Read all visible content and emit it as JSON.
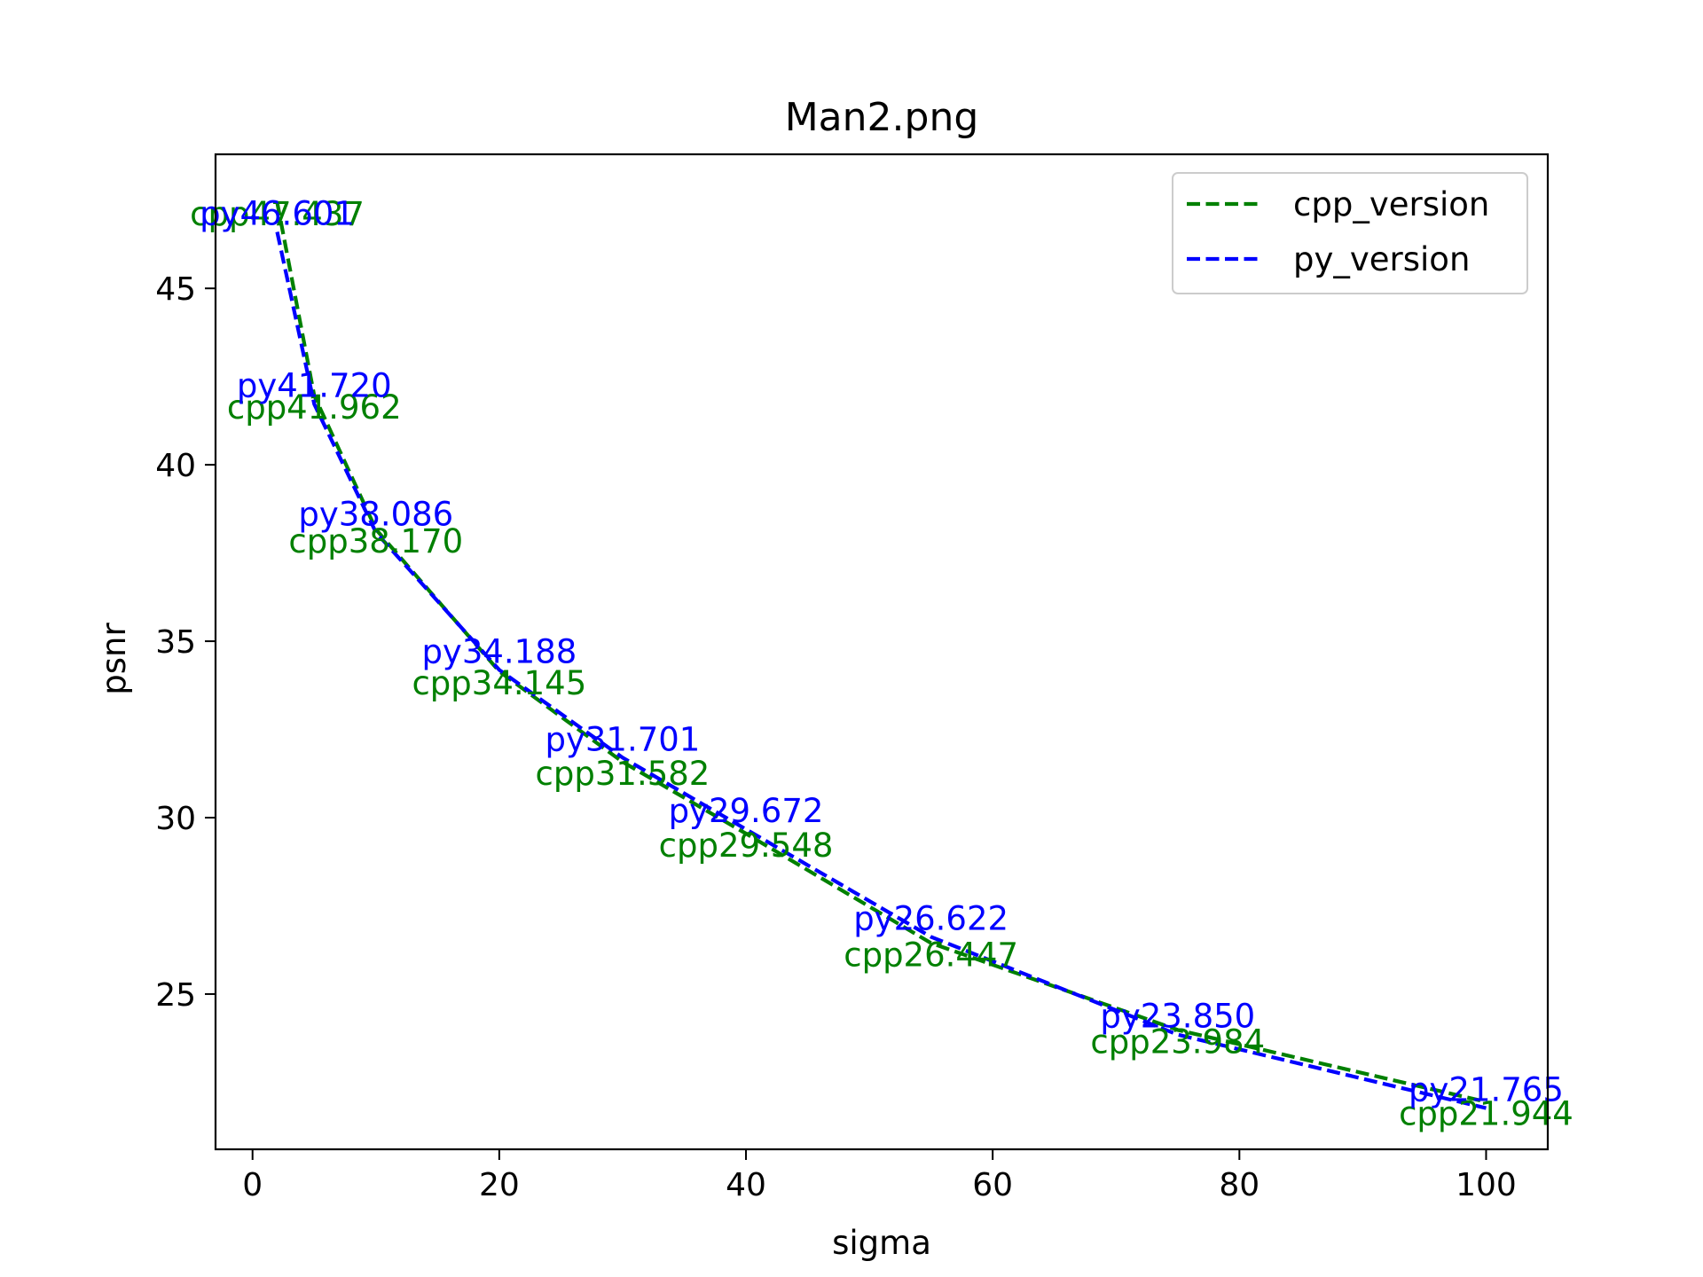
{
  "chart_data": {
    "type": "line",
    "title": "Man2.png",
    "xlabel": "sigma",
    "ylabel": "psnr",
    "xlim": [
      -3,
      105
    ],
    "ylim": [
      20.6,
      48.8
    ],
    "xticks": [
      0,
      20,
      40,
      60,
      80,
      100
    ],
    "yticks": [
      25,
      30,
      35,
      40,
      45
    ],
    "grid": false,
    "legend": {
      "position": "top-right"
    },
    "x": [
      2,
      5,
      10,
      20,
      30,
      40,
      55,
      75,
      100
    ],
    "series": [
      {
        "name": "cpp_version",
        "color": "#008000",
        "style": "dashed",
        "values": [
          47.437,
          41.962,
          38.17,
          34.145,
          31.582,
          29.548,
          26.447,
          23.984,
          21.944
        ],
        "labels": [
          "cpp47.437",
          "cpp41.962",
          "cpp38.170",
          "cpp34.145",
          "cpp31.582",
          "cpp29.548",
          "cpp26.447",
          "cpp23.984",
          "cpp21.944"
        ]
      },
      {
        "name": "py_version",
        "color": "#0000ff",
        "style": "dashed",
        "values": [
          46.601,
          41.72,
          38.086,
          34.188,
          31.701,
          29.672,
          26.622,
          23.85,
          21.765
        ],
        "labels": [
          "py46.601",
          "py41.720",
          "py38.086",
          "py34.188",
          "py31.701",
          "py29.672",
          "py26.622",
          "py23.850",
          "py21.765"
        ]
      }
    ]
  }
}
